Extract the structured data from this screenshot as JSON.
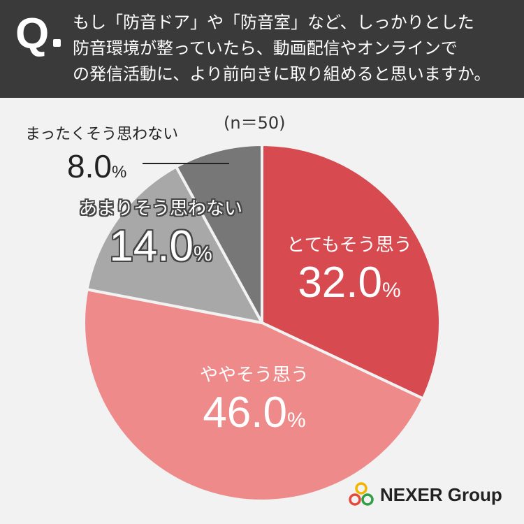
{
  "header": {
    "q_label": "Q",
    "question_lines": [
      "もし「防音ドア」や「防音室」など、しっかりとした",
      "防音環境が整っていたら、動画配信やオンラインで",
      "の発信活動に、より前向きに取り組めると思いますか。"
    ]
  },
  "sample_label": "(n＝50)",
  "brand": "NEXER Group",
  "chart_data": {
    "type": "pie",
    "start_angle_deg": 0,
    "direction": "clockwise",
    "slices": [
      {
        "label": "とてもそう思う",
        "value": 32.0,
        "display": "32.0",
        "color": "#d64a50",
        "label_style": "white"
      },
      {
        "label": "ややそう思う",
        "value": 46.0,
        "display": "46.0",
        "color": "#ee8a8a",
        "label_style": "white"
      },
      {
        "label": "あまりそう思わない",
        "value": 14.0,
        "display": "14.0",
        "color": "#a8a8a8",
        "label_style": "outline"
      },
      {
        "label": "まったくそう思わない",
        "value": 8.0,
        "display": "8.0",
        "color": "#777777",
        "label_style": "dark-outside"
      }
    ],
    "unit": "%"
  }
}
